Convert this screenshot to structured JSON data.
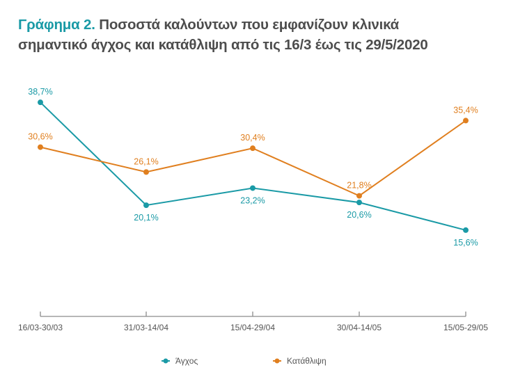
{
  "title": {
    "lead": "Γράφημα 2.",
    "line1": "Ποσοστά καλούντων που εμφανίζουν κλινικά",
    "line2": "σημαντικό άγχος και κατάθλιψη από τις 16/3 έως τις 29/5/2020"
  },
  "colors": {
    "anxiety": "#1a9aa6",
    "depression": "#e07f1f",
    "title_lead": "#1a9aa6",
    "axis": "#8c8c8c"
  },
  "chart_data": {
    "type": "line",
    "categories": [
      "16/03-30/03",
      "31/03-14/04",
      "15/04-29/04",
      "30/04-14/05",
      "15/05-29/05"
    ],
    "series": [
      {
        "name": "Άγχος",
        "values": [
          38.7,
          20.1,
          23.2,
          20.6,
          15.6
        ],
        "labels": [
          "38,7%",
          "20,1%",
          "23,2%",
          "20,6%",
          "15,6%"
        ],
        "color": "#1a9aa6"
      },
      {
        "name": "Κατάθλιψη",
        "values": [
          30.6,
          26.1,
          30.4,
          21.8,
          35.4
        ],
        "labels": [
          "30,6%",
          "26,1%",
          "30,4%",
          "21,8%",
          "35,4%"
        ],
        "color": "#e07f1f"
      }
    ],
    "ylim": [
      0,
      44
    ],
    "grid": false,
    "legend": "bottom-center"
  }
}
